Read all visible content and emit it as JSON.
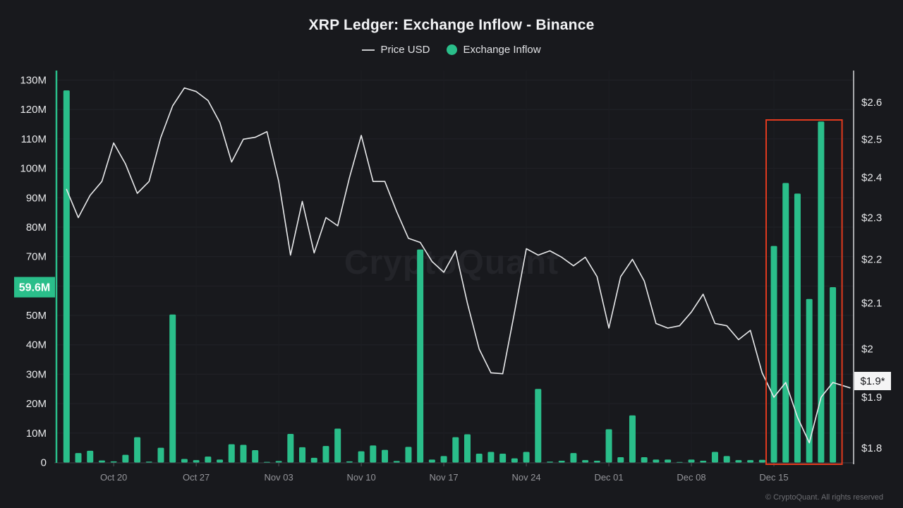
{
  "header": {
    "title": "XRP Ledger: Exchange Inflow - Binance",
    "legend": [
      {
        "label": "Price USD",
        "swatch": "line",
        "color": "#c9cacd"
      },
      {
        "label": "Exchange Inflow",
        "swatch": "dot",
        "color": "#2abe8a"
      }
    ]
  },
  "watermark": "CryptoQuant",
  "footer": {
    "copyright": "© CryptoQuant. All rights reserved"
  },
  "colors": {
    "background": "#18191d",
    "green": "#2abe8a",
    "price_line": "#e9eaec",
    "highlight_red": "#e23a1e",
    "badge_price_bg": "#f4f4f5",
    "badge_price_text": "#141519",
    "axis_label": "#e8e9eb",
    "x_label": "#94959a",
    "grid_h": "#212228",
    "grid_v": "#1d1e23",
    "baseline": "#3f4046",
    "tick": "#55565b",
    "axis_right": "#d8d9dc",
    "watermark_color": "#232429"
  },
  "chart_data": {
    "type": "bar+line",
    "title": "XRP Ledger: Exchange Inflow - Binance",
    "grid": true,
    "legend_position": "top",
    "categories": [
      "Oct 16",
      "Oct 17",
      "Oct 18",
      "Oct 19",
      "Oct 20",
      "Oct 21",
      "Oct 22",
      "Oct 23",
      "Oct 24",
      "Oct 25",
      "Oct 26",
      "Oct 27",
      "Oct 28",
      "Oct 29",
      "Oct 30",
      "Oct 31",
      "Nov 01",
      "Nov 02",
      "Nov 03",
      "Nov 04",
      "Nov 05",
      "Nov 06",
      "Nov 07",
      "Nov 08",
      "Nov 09",
      "Nov 10",
      "Nov 11",
      "Nov 12",
      "Nov 13",
      "Nov 14",
      "Nov 15",
      "Nov 16",
      "Nov 17",
      "Nov 18",
      "Nov 19",
      "Nov 20",
      "Nov 21",
      "Nov 22",
      "Nov 23",
      "Nov 24",
      "Nov 25",
      "Nov 26",
      "Nov 27",
      "Nov 28",
      "Nov 29",
      "Nov 30",
      "Dec 01",
      "Dec 02",
      "Dec 03",
      "Dec 04",
      "Dec 05",
      "Dec 06",
      "Dec 07",
      "Dec 08",
      "Dec 09",
      "Dec 10",
      "Dec 11",
      "Dec 12",
      "Dec 13",
      "Dec 14",
      "Dec 15",
      "Dec 16",
      "Dec 17",
      "Dec 18",
      "Dec 19",
      "Dec 20"
    ],
    "series": [
      {
        "name": "Exchange Inflow",
        "type": "bar",
        "axis": "left",
        "unit": "M",
        "values": [
          126.5,
          3.2,
          4.0,
          0.7,
          0.4,
          2.6,
          8.6,
          0.3,
          5.0,
          50.3,
          1.2,
          0.8,
          2.0,
          1.0,
          6.2,
          6.0,
          4.2,
          0.2,
          0.5,
          9.7,
          5.2,
          1.6,
          5.6,
          11.5,
          0.4,
          3.8,
          5.8,
          4.3,
          0.5,
          5.3,
          72.4,
          1.0,
          2.2,
          8.6,
          9.6,
          3.0,
          3.6,
          3.0,
          1.4,
          3.6,
          25.0,
          0.3,
          0.6,
          3.2,
          0.8,
          0.6,
          11.3,
          1.8,
          16.0,
          1.8,
          1.0,
          1.0,
          0.1,
          1.0,
          0.6,
          3.6,
          2.2,
          0.8,
          0.8,
          0.9,
          73.6,
          95.0,
          91.4,
          55.6,
          115.9,
          59.6
        ]
      },
      {
        "name": "Price USD",
        "type": "line",
        "axis": "right",
        "unit": "$",
        "values": [
          2.37,
          2.3,
          2.355,
          2.39,
          2.49,
          2.435,
          2.36,
          2.39,
          2.505,
          2.59,
          2.64,
          2.63,
          2.605,
          2.545,
          2.44,
          2.5,
          2.505,
          2.52,
          2.39,
          2.21,
          2.34,
          2.215,
          2.3,
          2.28,
          2.4,
          2.51,
          2.39,
          2.39,
          2.315,
          2.25,
          2.24,
          2.195,
          2.17,
          2.22,
          2.1,
          2.0,
          1.95,
          1.948,
          2.08,
          2.225,
          2.21,
          2.22,
          2.205,
          2.185,
          2.205,
          2.16,
          2.045,
          2.16,
          2.2,
          2.15,
          2.055,
          2.045,
          2.05,
          2.08,
          2.12,
          2.055,
          2.05,
          2.02,
          2.04,
          1.95,
          1.9,
          1.93,
          1.86,
          1.81,
          1.9,
          1.93
        ]
      }
    ],
    "x_tick_labels": [
      "Oct 20",
      "Oct 27",
      "Nov 03",
      "Nov 10",
      "Nov 17",
      "Nov 24",
      "Dec 01",
      "Dec 08",
      "Dec 15"
    ],
    "x_tick_days": [
      4,
      11,
      18,
      25,
      32,
      39,
      46,
      53,
      60
    ],
    "left_axis": {
      "range": [
        0,
        130
      ],
      "values": [
        0,
        10,
        20,
        30,
        40,
        50,
        60,
        70,
        80,
        90,
        100,
        110,
        120,
        130
      ],
      "labels": [
        "0",
        "10M",
        "20M",
        "30M",
        "40M",
        "50M",
        "60M",
        "70M",
        "80M",
        "90M",
        "100M",
        "110M",
        "120M",
        "130M"
      ],
      "hidden_label_value": 60,
      "badge": {
        "label": "59.6M",
        "value": 59.6
      }
    },
    "right_axis": {
      "scale": "log",
      "range": [
        1.8,
        2.6
      ],
      "values": [
        1.8,
        1.9,
        2.0,
        2.1,
        2.2,
        2.3,
        2.4,
        2.5,
        2.6
      ],
      "labels": [
        "$1.8",
        "$1.9",
        "$2",
        "$2.1",
        "$2.2",
        "$2.3",
        "$2.4",
        "$2.5",
        "$2.6"
      ],
      "badge": {
        "label": "$1.9*",
        "value": 1.933
      }
    },
    "price_line_extension": {
      "days_after_last": 1.45,
      "price": 1.919
    },
    "highlight_box": {
      "start_date": "Dec 15",
      "end_date": "Dec 20"
    }
  }
}
